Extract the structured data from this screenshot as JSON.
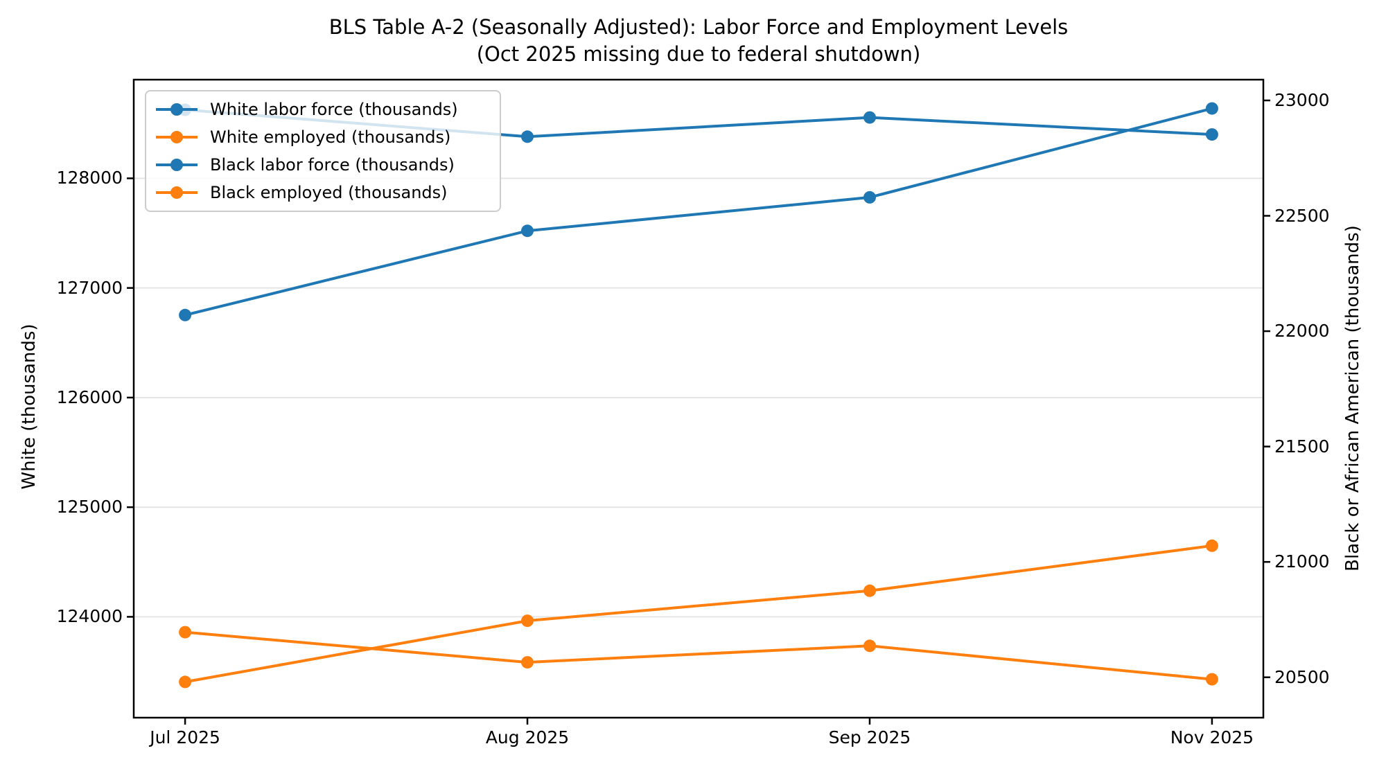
{
  "title": {
    "line1": "BLS Table A-2 (Seasonally Adjusted): Labor Force and Employment Levels",
    "line2": "(Oct 2025 missing due to federal shutdown)"
  },
  "axes": {
    "x": {
      "tick_labels": [
        "Jul 2025",
        "Aug 2025",
        "Sep 2025",
        "Nov 2025"
      ],
      "positions": [
        0,
        1,
        2,
        3
      ],
      "xlim": [
        -0.15,
        3.15
      ]
    },
    "y_left": {
      "label": "White (thousands)",
      "tick_values": [
        128000,
        127000,
        126000,
        125000,
        124000
      ],
      "ylim": [
        123080,
        128900
      ],
      "grid": true
    },
    "y_right": {
      "label": "Black or African American (thousands)",
      "tick_values": [
        23000,
        22500,
        22000,
        21500,
        21000,
        20500
      ],
      "ylim": [
        20325,
        23090
      ],
      "grid": false
    }
  },
  "legend": {
    "position": "upper left"
  },
  "chart_data": {
    "type": "line",
    "title": "BLS Table A-2 (Seasonally Adjusted): Labor Force and Employment Levels (Oct 2025 missing due to federal shutdown)",
    "categories": [
      "Jul 2025",
      "Aug 2025",
      "Sep 2025",
      "Nov 2025"
    ],
    "note": "Oct 2025 missing due to federal shutdown",
    "series": [
      {
        "name": "White labor force (thousands)",
        "axis": "left",
        "color": "#1f77b4",
        "marker": "o",
        "values": [
          128625,
          128380,
          128555,
          128400
        ]
      },
      {
        "name": "White employed (thousands)",
        "axis": "left",
        "color": "#ff7f0e",
        "marker": "o",
        "values": [
          123860,
          123585,
          123735,
          123430
        ]
      },
      {
        "name": "Black labor force (thousands)",
        "axis": "right",
        "color": "#1f77b4",
        "marker": "o",
        "values": [
          22070,
          22435,
          22580,
          22965
        ]
      },
      {
        "name": "Black employed (thousands)",
        "axis": "right",
        "color": "#ff7f0e",
        "marker": "o",
        "values": [
          20480,
          20745,
          20875,
          21070
        ]
      }
    ],
    "xlabel": "",
    "ylabel_left": "White (thousands)",
    "ylabel_right": "Black or African American (thousands)",
    "ylim_left": [
      123080,
      128900
    ],
    "ylim_right": [
      20325,
      23090
    ],
    "grid": "horizontal gridlines at left-axis ticks",
    "legend_position": "upper left"
  },
  "colors": {
    "blue": "#1f77b4",
    "orange": "#ff7f0e",
    "grid": "#e3e3e3",
    "spine": "#000000",
    "legend_border": "#cccccc"
  }
}
